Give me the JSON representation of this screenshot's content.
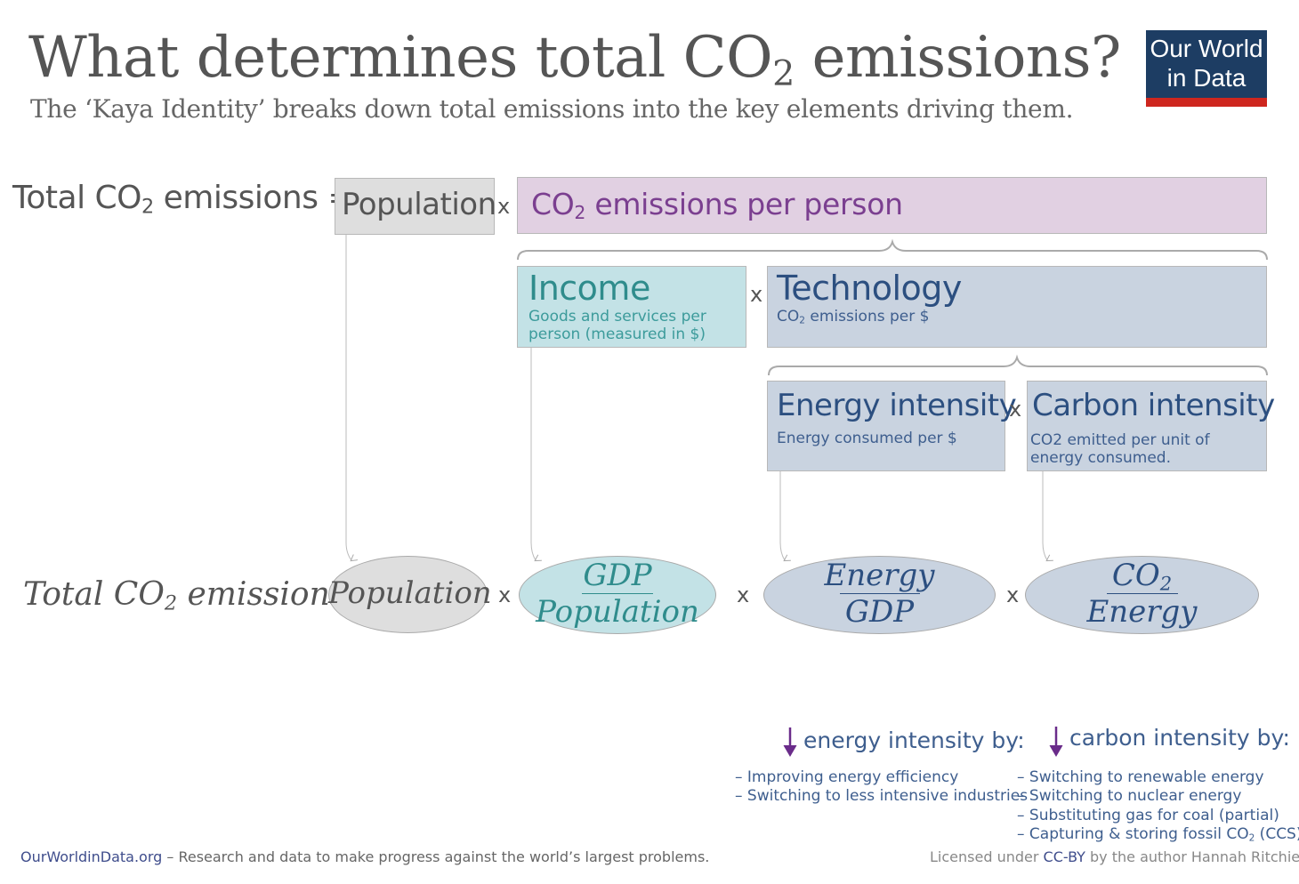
{
  "header": {
    "title_main": "What determines total CO",
    "title_sub": "2",
    "title_end": " emissions?",
    "subtitle": "The ‘Kaya Identity’ breaks down total emissions into the key elements driving them.",
    "logo_line1": "Our World",
    "logo_line2": "in Data"
  },
  "equation_top": {
    "lhs_a": "Total CO",
    "lhs_sub": "2",
    "lhs_b": " emissions =",
    "population": "Population",
    "times": "x",
    "co2_per_person_a": "CO",
    "co2_per_person_sub": "2",
    "co2_per_person_b": " emissions per person"
  },
  "income": {
    "label": "Income",
    "desc_line1": "Goods and services per",
    "desc_line2": "person (measured in $)"
  },
  "technology": {
    "label": "Technology",
    "desc_a": "CO",
    "desc_sub": "2",
    "desc_b": " emissions per $"
  },
  "energy_intensity": {
    "label": "Energy intensity",
    "desc": "Energy consumed per $"
  },
  "carbon_intensity": {
    "label": "Carbon intensity",
    "desc": "CO2 emitted per unit of energy consumed."
  },
  "equation_bottom": {
    "lhs_a": "Total CO",
    "lhs_sub": "2",
    "lhs_b": " emissions =",
    "population": "Population",
    "gdp_num": "GDP",
    "gdp_den": "Population",
    "energy_num": "Energy",
    "energy_den": "GDP",
    "co2_num_a": "CO",
    "co2_num_sub": "2",
    "co2_den": "Energy"
  },
  "reduce": {
    "energy_label": "energy intensity by:",
    "energy_items": [
      "– Improving energy efficiency",
      "– Switching to less intensive industries"
    ],
    "carbon_label": "carbon intensity by:",
    "carbon_items": [
      "– Switching to renewable energy",
      "– Switching to nuclear energy",
      "– Substituting gas for coal (partial)"
    ],
    "carbon_item_ccs_a": "– Capturing & storing fossil CO",
    "carbon_item_ccs_sub": "2",
    "carbon_item_ccs_b": " (CCS)"
  },
  "footer": {
    "site": "OurWorldinData.org",
    "tagline": " – Research and data to make progress against the world’s largest problems.",
    "license_a": "Licensed under ",
    "license_link": "CC-BY",
    "license_b": " by the author Hannah Ritchie."
  },
  "colors": {
    "population": "#dedede",
    "co2_per_person": "#e1d0e2",
    "income": "#c3e2e6",
    "technology": "#c9d3e0",
    "logo_bg": "#1d3d63",
    "logo_accent": "#ce261e",
    "arrow_purple": "#6a2c8a"
  }
}
